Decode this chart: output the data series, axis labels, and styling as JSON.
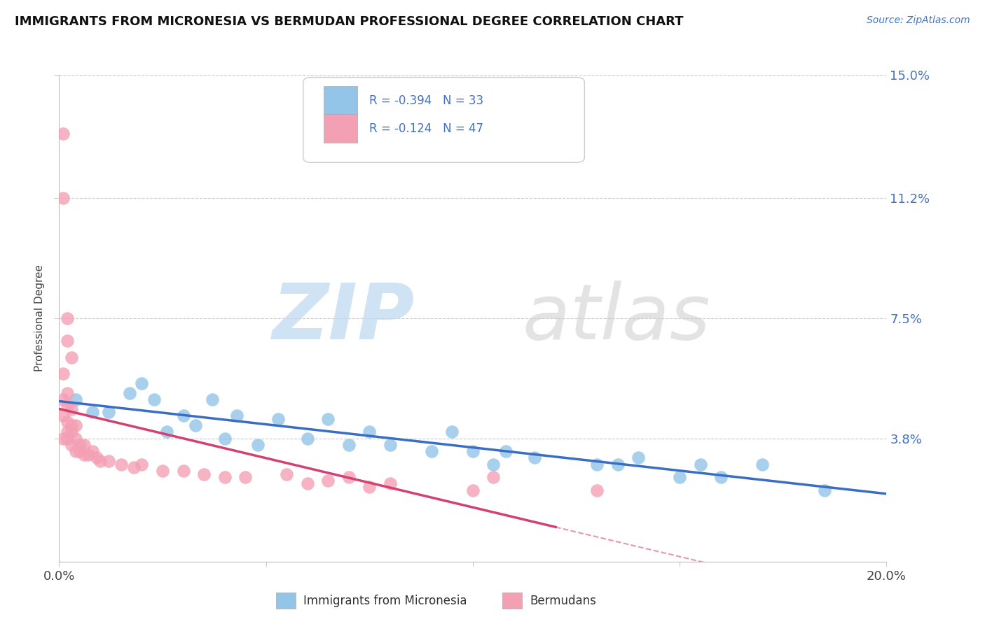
{
  "title": "IMMIGRANTS FROM MICRONESIA VS BERMUDAN PROFESSIONAL DEGREE CORRELATION CHART",
  "source": "Source: ZipAtlas.com",
  "ylabel": "Professional Degree",
  "legend_label1": "Immigrants from Micronesia",
  "legend_label2": "Bermudans",
  "r1": -0.394,
  "n1": 33,
  "r2": -0.124,
  "n2": 47,
  "xlim": [
    0.0,
    0.2
  ],
  "ylim": [
    0.0,
    0.15
  ],
  "yticks": [
    0.038,
    0.075,
    0.112,
    0.15
  ],
  "ytick_labels": [
    "3.8%",
    "7.5%",
    "11.2%",
    "15.0%"
  ],
  "xticks": [
    0.0,
    0.2
  ],
  "xtick_labels": [
    "0.0%",
    "20.0%"
  ],
  "color_blue": "#92C5E8",
  "color_pink": "#F4A0B4",
  "line_blue": "#3A6EC4",
  "line_pink": "#D44070",
  "blue_points": [
    [
      0.004,
      0.05
    ],
    [
      0.008,
      0.046
    ],
    [
      0.012,
      0.046
    ],
    [
      0.017,
      0.052
    ],
    [
      0.02,
      0.055
    ],
    [
      0.023,
      0.05
    ],
    [
      0.026,
      0.04
    ],
    [
      0.03,
      0.045
    ],
    [
      0.033,
      0.042
    ],
    [
      0.037,
      0.05
    ],
    [
      0.04,
      0.038
    ],
    [
      0.043,
      0.045
    ],
    [
      0.048,
      0.036
    ],
    [
      0.053,
      0.044
    ],
    [
      0.06,
      0.038
    ],
    [
      0.065,
      0.044
    ],
    [
      0.07,
      0.036
    ],
    [
      0.075,
      0.04
    ],
    [
      0.08,
      0.036
    ],
    [
      0.09,
      0.034
    ],
    [
      0.095,
      0.04
    ],
    [
      0.1,
      0.034
    ],
    [
      0.105,
      0.03
    ],
    [
      0.108,
      0.034
    ],
    [
      0.115,
      0.032
    ],
    [
      0.13,
      0.03
    ],
    [
      0.135,
      0.03
    ],
    [
      0.14,
      0.032
    ],
    [
      0.15,
      0.026
    ],
    [
      0.155,
      0.03
    ],
    [
      0.16,
      0.026
    ],
    [
      0.17,
      0.03
    ],
    [
      0.185,
      0.022
    ]
  ],
  "pink_points": [
    [
      0.001,
      0.132
    ],
    [
      0.001,
      0.112
    ],
    [
      0.002,
      0.075
    ],
    [
      0.002,
      0.068
    ],
    [
      0.003,
      0.063
    ],
    [
      0.001,
      0.058
    ],
    [
      0.002,
      0.052
    ],
    [
      0.001,
      0.05
    ],
    [
      0.002,
      0.048
    ],
    [
      0.003,
      0.047
    ],
    [
      0.001,
      0.045
    ],
    [
      0.002,
      0.043
    ],
    [
      0.003,
      0.042
    ],
    [
      0.004,
      0.042
    ],
    [
      0.002,
      0.04
    ],
    [
      0.003,
      0.04
    ],
    [
      0.001,
      0.038
    ],
    [
      0.002,
      0.038
    ],
    [
      0.004,
      0.038
    ],
    [
      0.003,
      0.036
    ],
    [
      0.005,
      0.036
    ],
    [
      0.006,
      0.036
    ],
    [
      0.004,
      0.034
    ],
    [
      0.005,
      0.034
    ],
    [
      0.006,
      0.033
    ],
    [
      0.007,
      0.033
    ],
    [
      0.008,
      0.034
    ],
    [
      0.009,
      0.032
    ],
    [
      0.01,
      0.031
    ],
    [
      0.012,
      0.031
    ],
    [
      0.015,
      0.03
    ],
    [
      0.018,
      0.029
    ],
    [
      0.02,
      0.03
    ],
    [
      0.025,
      0.028
    ],
    [
      0.03,
      0.028
    ],
    [
      0.035,
      0.027
    ],
    [
      0.04,
      0.026
    ],
    [
      0.045,
      0.026
    ],
    [
      0.055,
      0.027
    ],
    [
      0.06,
      0.024
    ],
    [
      0.065,
      0.025
    ],
    [
      0.07,
      0.026
    ],
    [
      0.075,
      0.023
    ],
    [
      0.08,
      0.024
    ],
    [
      0.1,
      0.022
    ],
    [
      0.105,
      0.026
    ],
    [
      0.13,
      0.022
    ]
  ]
}
